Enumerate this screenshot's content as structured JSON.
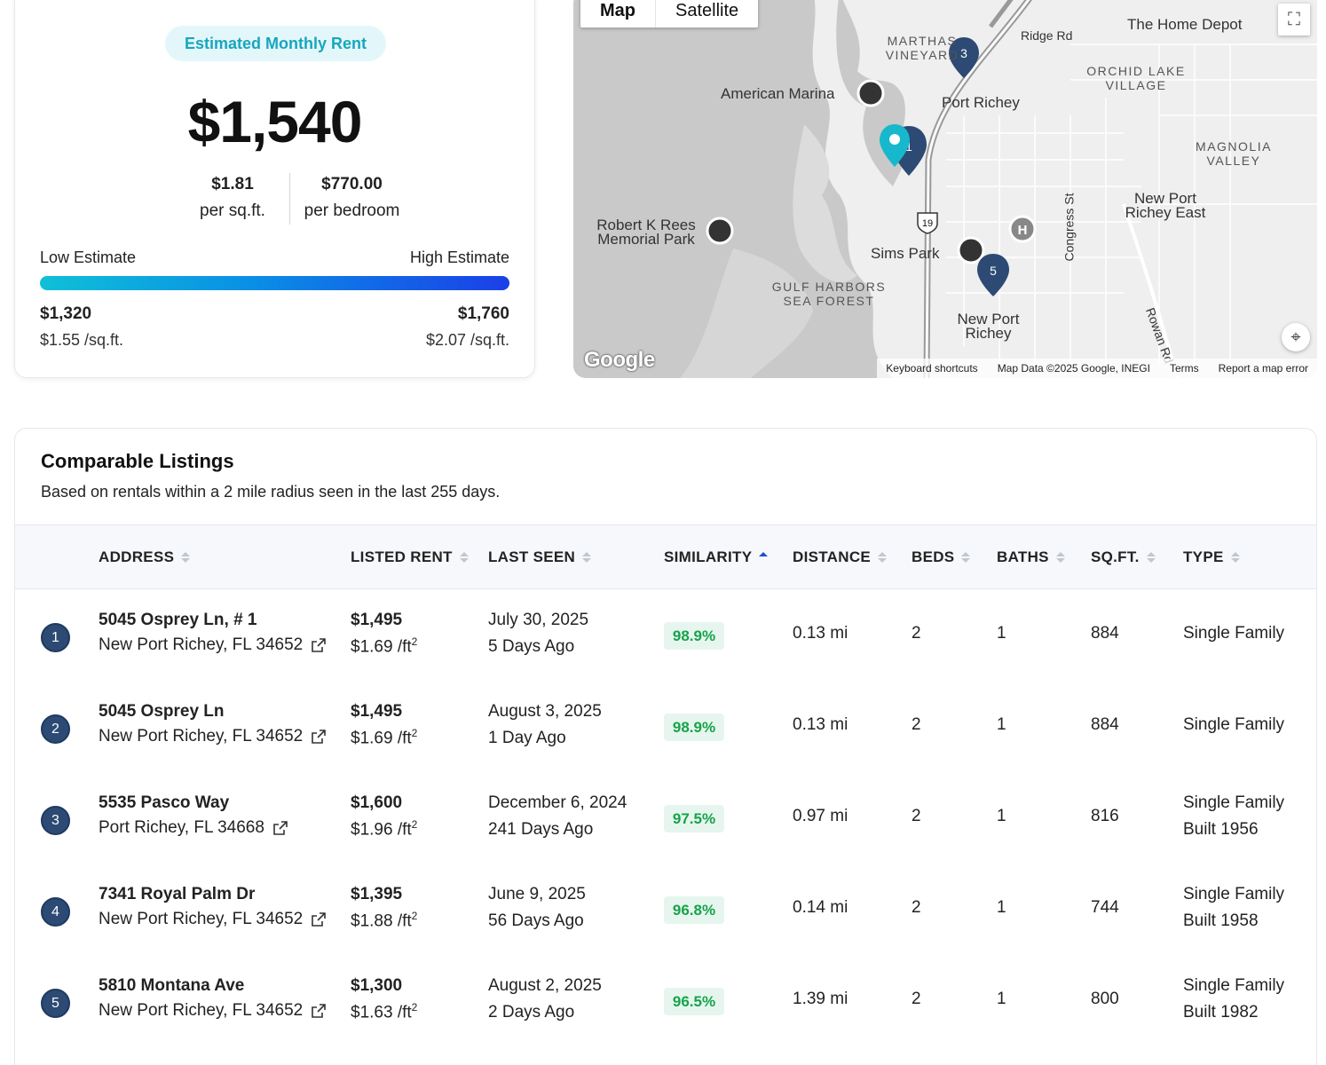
{
  "estimate": {
    "pill_label": "Estimated Monthly Rent",
    "rent": "$1,540",
    "per_sqft_value": "$1.81",
    "per_sqft_label": "per sq.ft.",
    "per_bedroom_value": "$770.00",
    "per_bedroom_label": "per bedroom",
    "low_label": "Low Estimate",
    "high_label": "High Estimate",
    "low_value": "$1,320",
    "high_value": "$1,760",
    "low_psf": "$1.55 /sq.ft.",
    "high_psf": "$2.07 /sq.ft."
  },
  "map": {
    "toggle_map": "Map",
    "toggle_satellite": "Satellite",
    "labels": {
      "home_depot": "The Home Depot",
      "ridge_rd": "Ridge Rd",
      "marthas_vineyard": "MARTHAS VINEYARD",
      "orchid_lake": "ORCHID LAKE VILLAGE",
      "american_marina": "American Marina",
      "port_richey": "Port Richey",
      "magnolia_valley": "MAGNOLIA VALLEY",
      "robert_rees": "Robert K Rees Memorial Park",
      "new_port_richey_east": "New Port Richey East",
      "congress_st": "Congress St",
      "sims_park": "Sims Park",
      "gulf_harbors": "GULF HARBORS SEA FOREST",
      "new_port_richey": "New Port Richey",
      "rowan_rd": "Rowan Rd",
      "route_19": "19"
    },
    "footer": {
      "shortcuts": "Keyboard shortcuts",
      "map_data": "Map Data ©2025 Google, INEGI",
      "terms": "Terms",
      "report": "Report a map error"
    },
    "logo": "Google",
    "pins": [
      "1",
      "3",
      "5"
    ],
    "hospital": "H"
  },
  "comps": {
    "title": "Comparable Listings",
    "subtitle": "Based on rentals within a 2 mile radius seen in the last 255 days.",
    "headers": {
      "address": "ADDRESS",
      "listed_rent": "LISTED RENT",
      "last_seen": "LAST SEEN",
      "similarity": "SIMILARITY",
      "distance": "DISTANCE",
      "beds": "BEDS",
      "baths": "BATHS",
      "sqft": "SQ.FT.",
      "type": "TYPE"
    },
    "rows": [
      {
        "num": "1",
        "street": "5045 Osprey Ln, # 1",
        "city": "New Port Richey, FL 34652",
        "rent": "$1,495",
        "psf": "$1.69 /ft",
        "date": "July 30, 2025",
        "ago": "5 Days Ago",
        "similarity": "98.9%",
        "distance": "0.13 mi",
        "beds": "2",
        "baths": "1",
        "sqft": "884",
        "type": "Single Family",
        "built": ""
      },
      {
        "num": "2",
        "street": "5045 Osprey Ln",
        "city": "New Port Richey, FL 34652",
        "rent": "$1,495",
        "psf": "$1.69 /ft",
        "date": "August 3, 2025",
        "ago": "1 Day Ago",
        "similarity": "98.9%",
        "distance": "0.13 mi",
        "beds": "2",
        "baths": "1",
        "sqft": "884",
        "type": "Single Family",
        "built": ""
      },
      {
        "num": "3",
        "street": "5535 Pasco Way",
        "city": "Port Richey, FL 34668",
        "rent": "$1,600",
        "psf": "$1.96 /ft",
        "date": "December 6, 2024",
        "ago": "241 Days Ago",
        "similarity": "97.5%",
        "distance": "0.97 mi",
        "beds": "2",
        "baths": "1",
        "sqft": "816",
        "type": "Single Family",
        "built": "Built 1956"
      },
      {
        "num": "4",
        "street": "7341 Royal Palm Dr",
        "city": "New Port Richey, FL 34652",
        "rent": "$1,395",
        "psf": "$1.88 /ft",
        "date": "June 9, 2025",
        "ago": "56 Days Ago",
        "similarity": "96.8%",
        "distance": "0.14 mi",
        "beds": "2",
        "baths": "1",
        "sqft": "744",
        "type": "Single Family",
        "built": "Built 1958"
      },
      {
        "num": "5",
        "street": "5810 Montana Ave",
        "city": "New Port Richey, FL 34652",
        "rent": "$1,300",
        "psf": "$1.63 /ft",
        "date": "August 2, 2025",
        "ago": "2 Days Ago",
        "similarity": "96.5%",
        "distance": "1.39 mi",
        "beds": "2",
        "baths": "1",
        "sqft": "800",
        "type": "Single Family",
        "built": "Built 1982"
      }
    ]
  }
}
